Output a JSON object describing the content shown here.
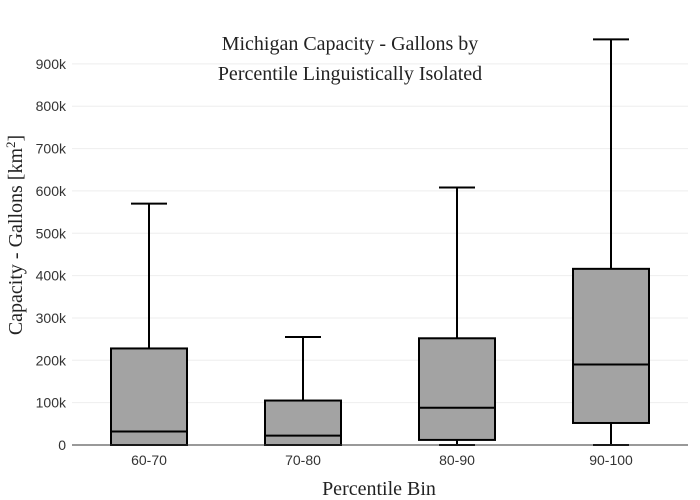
{
  "chart_data": {
    "type": "box",
    "title_line1": "Michigan Capacity - Gallons by",
    "title_line2": "Percentile Linguistically Isolated",
    "xlabel": "Percentile Bin",
    "ylabel_main": "Capacity - Gallons  [km",
    "ylabel_sup": "2",
    "ylabel_close": "]",
    "ylim": [
      0,
      980000
    ],
    "y_ticks": [
      {
        "value": 0,
        "label": "0"
      },
      {
        "value": 100000,
        "label": "100k"
      },
      {
        "value": 200000,
        "label": "200k"
      },
      {
        "value": 300000,
        "label": "300k"
      },
      {
        "value": 400000,
        "label": "400k"
      },
      {
        "value": 500000,
        "label": "500k"
      },
      {
        "value": 600000,
        "label": "600k"
      },
      {
        "value": 700000,
        "label": "700k"
      },
      {
        "value": 800000,
        "label": "800k"
      },
      {
        "value": 900000,
        "label": "900k"
      }
    ],
    "grid": true,
    "categories": [
      "60-70",
      "70-80",
      "80-90",
      "90-100"
    ],
    "boxes": [
      {
        "category": "60-70",
        "min": 0,
        "q1": 0,
        "median": 32000,
        "q3": 228000,
        "max": 570000
      },
      {
        "category": "70-80",
        "min": 0,
        "q1": 0,
        "median": 22000,
        "q3": 105000,
        "max": 255000
      },
      {
        "category": "80-90",
        "min": 0,
        "q1": 12000,
        "median": 88000,
        "q3": 252000,
        "max": 608000
      },
      {
        "category": "90-100",
        "min": 0,
        "q1": 52000,
        "median": 190000,
        "q3": 416000,
        "max": 958000
      }
    ],
    "box_fill": "#a3a3a3",
    "line_color": "#000000"
  }
}
